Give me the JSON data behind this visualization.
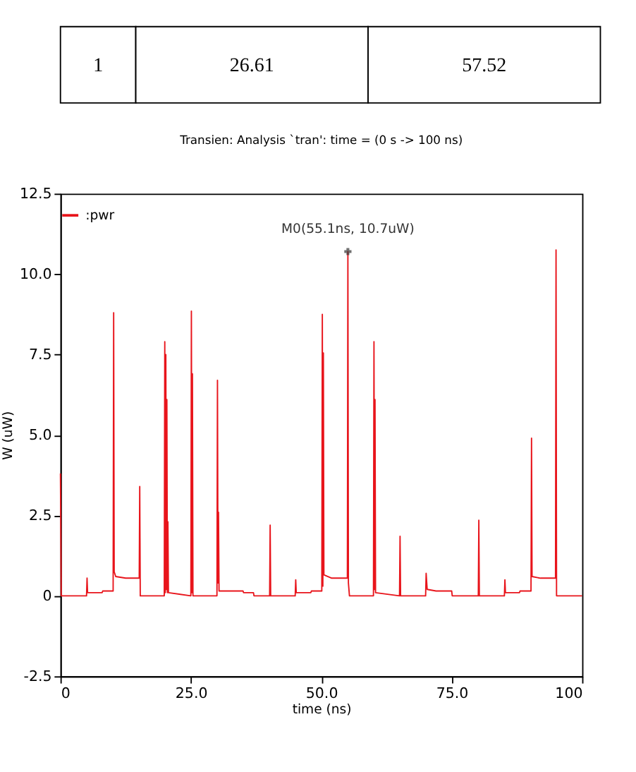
{
  "chart_data": {
    "type": "line",
    "title": "Transien: Analysis `tran': time = (0 s -> 100 ns)",
    "xlabel": "time (ns)",
    "ylabel": "W (uW)",
    "annotations": [
      "1",
      "26.61",
      "57.52",
      {
        "text": "M0(55.1ns, 10.7uW)",
        "x": 55.1,
        "y": 10.7
      }
    ],
    "xlim": [
      0,
      100
    ],
    "ylim": [
      -2.5,
      12.5
    ],
    "xticks": [
      0,
      {
        "value": 25,
        "label": "25.0"
      },
      {
        "value": 50,
        "label": "50.0"
      },
      {
        "value": 75,
        "label": "75.0"
      },
      100
    ],
    "yticks": [
      {
        "value": -2.5,
        "label": "-2.5"
      },
      0,
      {
        "value": 2.5,
        "label": "2.5"
      },
      {
        "value": 5,
        "label": "5.0"
      },
      {
        "value": 7.5,
        "label": "7.5"
      },
      {
        "value": 10,
        "label": "10.0"
      },
      {
        "value": 12.5,
        "label": "12.5"
      }
    ],
    "grid": false,
    "legend": "top left",
    "line_style": "solid",
    "marker": "none",
    "series": [
      {
        "name": ":pwr",
        "color": "#e8141b",
        "x": [
          0,
          0.15,
          5.0,
          5.1,
          5.2,
          8,
          8.1,
          10.1,
          10.2,
          10.3,
          10.6,
          12.5,
          15.1,
          15.2,
          15.3,
          19.9,
          20.0,
          20.1,
          20.2,
          20.3,
          20.4,
          20.5,
          20.6,
          20.7,
          25.0,
          25.1,
          25.2,
          25.3,
          25.4,
          30.0,
          30.1,
          30.2,
          30.3,
          30.4,
          35,
          35.1,
          37,
          37.1,
          40.1,
          40.2,
          40.3,
          45.0,
          45.1,
          45.2,
          48,
          48.1,
          50.1,
          50.2,
          50.3,
          50.4,
          50.5,
          52,
          55.0,
          55.1,
          55.2,
          55.4,
          60.0,
          60.1,
          60.2,
          60.3,
          60.4,
          65.0,
          65.1,
          65.2,
          70.0,
          70.1,
          70.3,
          72,
          75,
          75.1,
          80.1,
          80.2,
          80.3,
          85.1,
          85.2,
          85.3,
          88,
          88.1,
          90.2,
          90.3,
          90.4,
          92,
          94.9,
          95.0,
          95.1,
          100
        ],
        "values": [
          3.8,
          0,
          0,
          0.55,
          0.1,
          0.1,
          0.15,
          0.15,
          8.8,
          0.75,
          0.6,
          0.55,
          0.55,
          3.4,
          0,
          0,
          7.9,
          0.1,
          7.5,
          0.2,
          6.1,
          0.1,
          2.3,
          0.1,
          0,
          8.85,
          0.1,
          6.9,
          0,
          0,
          6.7,
          0.4,
          2.6,
          0.15,
          0.15,
          0.1,
          0.1,
          0,
          0,
          2.2,
          0,
          0,
          0.5,
          0.1,
          0.1,
          0.15,
          0.15,
          8.75,
          0.3,
          7.55,
          0.65,
          0.55,
          0.55,
          10.7,
          0.4,
          0,
          0,
          7.9,
          0.2,
          6.1,
          0.1,
          0,
          1.85,
          0,
          0,
          0.7,
          0.2,
          0.15,
          0.15,
          0,
          0,
          2.35,
          0,
          0,
          0.5,
          0.1,
          0.1,
          0.15,
          0.15,
          4.9,
          0.6,
          0.55,
          0.55,
          10.75,
          0,
          0
        ]
      }
    ]
  }
}
